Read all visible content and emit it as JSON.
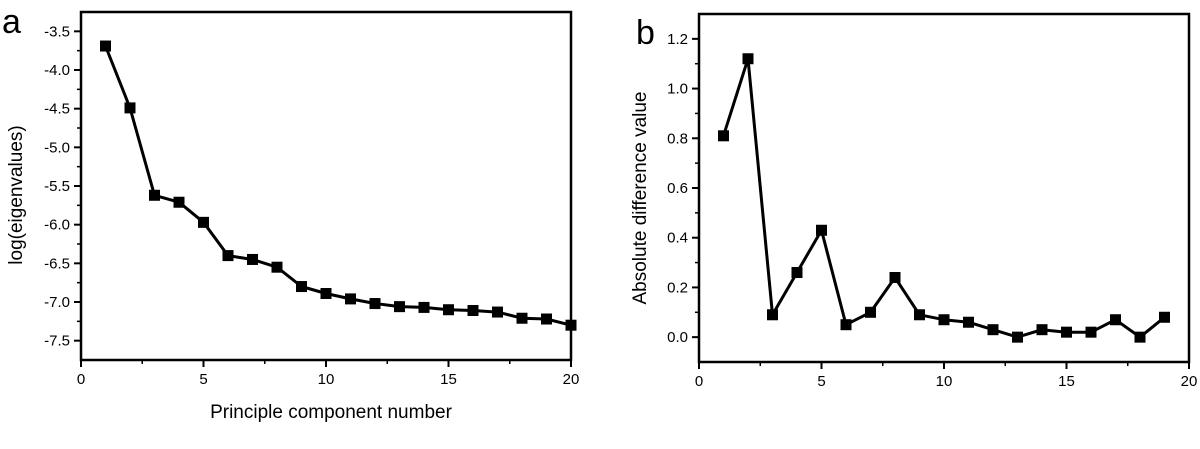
{
  "chart_data": [
    {
      "panel_label": "a",
      "type": "line",
      "title": "",
      "xlabel": "Principle component number",
      "ylabel": "log(eigenvalues)",
      "xlim": [
        0,
        20
      ],
      "ylim": [
        -7.75,
        -3.25
      ],
      "x_ticks": [
        0,
        5,
        10,
        15,
        20
      ],
      "y_ticks": [
        -3.5,
        -4.0,
        -4.5,
        -5.0,
        -5.5,
        -6.0,
        -6.5,
        -7.0,
        -7.5
      ],
      "x_tick_labels": [
        "0",
        "5",
        "10",
        "15",
        "20"
      ],
      "y_tick_labels": [
        "-3.5",
        "-4.0",
        "-4.5",
        "-5.0",
        "-5.5",
        "-6.0",
        "-6.5",
        "-7.0",
        "-7.5"
      ],
      "marker": "square",
      "grid": false,
      "color": "#000000",
      "series": [
        {
          "x": [
            1,
            2,
            3,
            4,
            5,
            6,
            7,
            8,
            9,
            10,
            11,
            12,
            13,
            14,
            15,
            16,
            17,
            18,
            19,
            20
          ],
          "values": [
            -3.69,
            -4.49,
            -5.62,
            -5.71,
            -5.97,
            -6.4,
            -6.45,
            -6.55,
            -6.8,
            -6.89,
            -6.96,
            -7.02,
            -7.06,
            -7.07,
            -7.1,
            -7.11,
            -7.13,
            -7.21,
            -7.22,
            -7.3
          ]
        }
      ]
    },
    {
      "panel_label": "b",
      "type": "line",
      "title": "",
      "xlabel": "",
      "ylabel": "Absolute difference value",
      "xlim": [
        0,
        20
      ],
      "ylim": [
        -0.1,
        1.3
      ],
      "x_ticks": [
        0,
        5,
        10,
        15,
        20
      ],
      "y_ticks": [
        0.0,
        0.2,
        0.4,
        0.6,
        0.8,
        1.0,
        1.2
      ],
      "x_tick_labels": [
        "0",
        "5",
        "10",
        "15",
        "20"
      ],
      "y_tick_labels": [
        "0.0",
        "0.2",
        "0.4",
        "0.6",
        "0.8",
        "1.0",
        "1.2"
      ],
      "marker": "square",
      "grid": false,
      "color": "#000000",
      "series": [
        {
          "x": [
            1,
            2,
            3,
            4,
            5,
            6,
            7,
            8,
            9,
            10,
            11,
            12,
            13,
            14,
            15,
            16,
            17,
            18,
            19
          ],
          "values": [
            0.81,
            1.12,
            0.09,
            0.26,
            0.43,
            0.05,
            0.1,
            0.24,
            0.09,
            0.07,
            0.06,
            0.03,
            0.0,
            0.03,
            0.02,
            0.02,
            0.07,
            0.0,
            0.08
          ]
        }
      ]
    }
  ]
}
